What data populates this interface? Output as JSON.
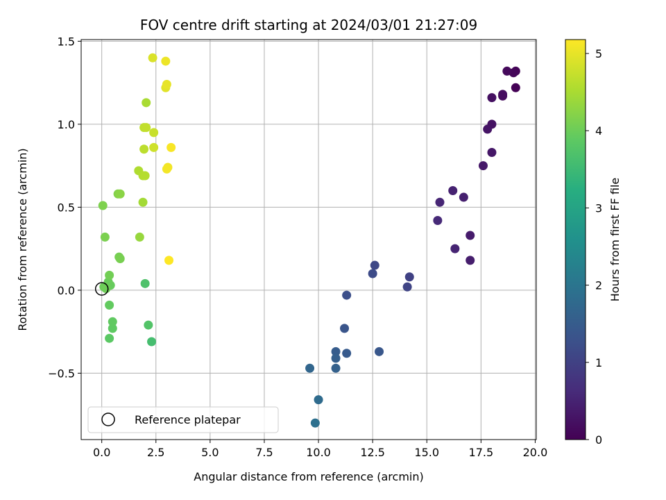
{
  "chart_data": {
    "type": "scatter",
    "title": "FOV centre drift starting at 2024/03/01 21:27:09",
    "xlabel": "Angular distance from reference (arcmin)",
    "ylabel": "Rotation from reference (arcmin)",
    "xlim": [
      -0.95,
      20.05
    ],
    "ylim": [
      -0.9,
      1.51
    ],
    "xticks": [
      0.0,
      2.5,
      5.0,
      7.5,
      10.0,
      12.5,
      15.0,
      17.5,
      20.0
    ],
    "xtick_labels": [
      "0.0",
      "2.5",
      "5.0",
      "7.5",
      "10.0",
      "12.5",
      "15.0",
      "17.5",
      "20.0"
    ],
    "yticks": [
      -0.5,
      0.0,
      0.5,
      1.0,
      1.5
    ],
    "ytick_labels": [
      "−0.5",
      "0.0",
      "0.5",
      "1.0",
      "1.5"
    ],
    "grid": true,
    "legend": {
      "placement": "lower-left",
      "entries": [
        {
          "label": "Reference platepar",
          "marker": "open-circle",
          "color": "#000000"
        }
      ]
    },
    "reference_point": {
      "x": 0.0,
      "y": 0.0
    },
    "colorbar": {
      "label": "Hours from first FF file",
      "colormap": "viridis",
      "range": [
        0,
        5.18
      ],
      "ticks": [
        0,
        1,
        2,
        3,
        4,
        5
      ],
      "tick_labels": [
        "0",
        "1",
        "2",
        "3",
        "4",
        "5"
      ]
    },
    "points": [
      {
        "x": 19.1,
        "y": 1.22,
        "c": 0.02
      },
      {
        "x": 19.1,
        "y": 1.32,
        "c": 0.05
      },
      {
        "x": 19.0,
        "y": 1.31,
        "c": 0.08
      },
      {
        "x": 18.7,
        "y": 1.32,
        "c": 0.12
      },
      {
        "x": 18.5,
        "y": 1.17,
        "c": 0.15
      },
      {
        "x": 18.5,
        "y": 1.18,
        "c": 0.18
      },
      {
        "x": 18.0,
        "y": 1.16,
        "c": 0.22
      },
      {
        "x": 18.0,
        "y": 1.0,
        "c": 0.25
      },
      {
        "x": 17.8,
        "y": 0.97,
        "c": 0.28
      },
      {
        "x": 18.0,
        "y": 0.83,
        "c": 0.32
      },
      {
        "x": 17.6,
        "y": 0.75,
        "c": 0.35
      },
      {
        "x": 17.0,
        "y": 0.33,
        "c": 0.38
      },
      {
        "x": 17.0,
        "y": 0.18,
        "c": 0.42
      },
      {
        "x": 16.7,
        "y": 0.56,
        "c": 0.45
      },
      {
        "x": 16.2,
        "y": 0.6,
        "c": 0.48
      },
      {
        "x": 16.3,
        "y": 0.25,
        "c": 0.52
      },
      {
        "x": 15.6,
        "y": 0.53,
        "c": 0.55
      },
      {
        "x": 15.5,
        "y": 0.42,
        "c": 0.6
      },
      {
        "x": 14.2,
        "y": 0.08,
        "c": 1.0
      },
      {
        "x": 14.1,
        "y": 0.02,
        "c": 1.05
      },
      {
        "x": 12.6,
        "y": 0.15,
        "c": 1.12
      },
      {
        "x": 12.5,
        "y": 0.1,
        "c": 1.18
      },
      {
        "x": 11.3,
        "y": -0.03,
        "c": 1.25
      },
      {
        "x": 11.2,
        "y": -0.23,
        "c": 1.35
      },
      {
        "x": 12.8,
        "y": -0.37,
        "c": 1.4
      },
      {
        "x": 11.3,
        "y": -0.38,
        "c": 1.45
      },
      {
        "x": 10.8,
        "y": -0.37,
        "c": 1.5
      },
      {
        "x": 10.8,
        "y": -0.41,
        "c": 1.55
      },
      {
        "x": 10.8,
        "y": -0.47,
        "c": 1.6
      },
      {
        "x": 9.6,
        "y": -0.47,
        "c": 1.7
      },
      {
        "x": 10.0,
        "y": -0.66,
        "c": 1.8
      },
      {
        "x": 9.85,
        "y": -0.8,
        "c": 1.9
      },
      {
        "x": 2.3,
        "y": -0.31,
        "c": 3.6
      },
      {
        "x": 2.0,
        "y": 0.04,
        "c": 3.7
      },
      {
        "x": 2.15,
        "y": -0.21,
        "c": 3.75
      },
      {
        "x": 0.35,
        "y": -0.29,
        "c": 3.85
      },
      {
        "x": 0.5,
        "y": -0.23,
        "c": 3.88
      },
      {
        "x": 0.5,
        "y": -0.19,
        "c": 3.9
      },
      {
        "x": 0.35,
        "y": -0.09,
        "c": 3.92
      },
      {
        "x": 0.4,
        "y": 0.03,
        "c": 3.95
      },
      {
        "x": 0.3,
        "y": 0.05,
        "c": 3.97
      },
      {
        "x": 0.2,
        "y": 0.02,
        "c": 3.98
      },
      {
        "x": 0.1,
        "y": 0.02,
        "c": 4.0
      },
      {
        "x": 0.2,
        "y": 0.01,
        "c": 4.02
      },
      {
        "x": 0.35,
        "y": 0.09,
        "c": 4.05
      },
      {
        "x": 0.8,
        "y": 0.2,
        "c": 4.08
      },
      {
        "x": 0.85,
        "y": 0.19,
        "c": 4.1
      },
      {
        "x": 0.15,
        "y": 0.32,
        "c": 4.12
      },
      {
        "x": 0.05,
        "y": 0.51,
        "c": 4.15
      },
      {
        "x": 0.75,
        "y": 0.58,
        "c": 4.2
      },
      {
        "x": 0.85,
        "y": 0.58,
        "c": 4.25
      },
      {
        "x": 1.75,
        "y": 0.32,
        "c": 4.35
      },
      {
        "x": 1.9,
        "y": 0.53,
        "c": 4.45
      },
      {
        "x": 2.05,
        "y": 1.13,
        "c": 4.5
      },
      {
        "x": 1.7,
        "y": 0.72,
        "c": 4.55
      },
      {
        "x": 1.9,
        "y": 0.69,
        "c": 4.58
      },
      {
        "x": 2.0,
        "y": 0.69,
        "c": 4.6
      },
      {
        "x": 1.95,
        "y": 0.85,
        "c": 4.65
      },
      {
        "x": 1.95,
        "y": 0.98,
        "c": 4.68
      },
      {
        "x": 2.05,
        "y": 0.98,
        "c": 4.7
      },
      {
        "x": 2.4,
        "y": 0.95,
        "c": 4.75
      },
      {
        "x": 2.4,
        "y": 0.86,
        "c": 4.8
      },
      {
        "x": 2.35,
        "y": 1.4,
        "c": 4.9
      },
      {
        "x": 2.95,
        "y": 1.22,
        "c": 4.95
      },
      {
        "x": 3.0,
        "y": 1.24,
        "c": 5.0
      },
      {
        "x": 2.95,
        "y": 1.38,
        "c": 5.05
      },
      {
        "x": 3.05,
        "y": 0.74,
        "c": 5.08
      },
      {
        "x": 3.0,
        "y": 0.73,
        "c": 5.1
      },
      {
        "x": 3.2,
        "y": 0.86,
        "c": 5.14
      },
      {
        "x": 3.1,
        "y": 0.18,
        "c": 5.18
      }
    ]
  }
}
